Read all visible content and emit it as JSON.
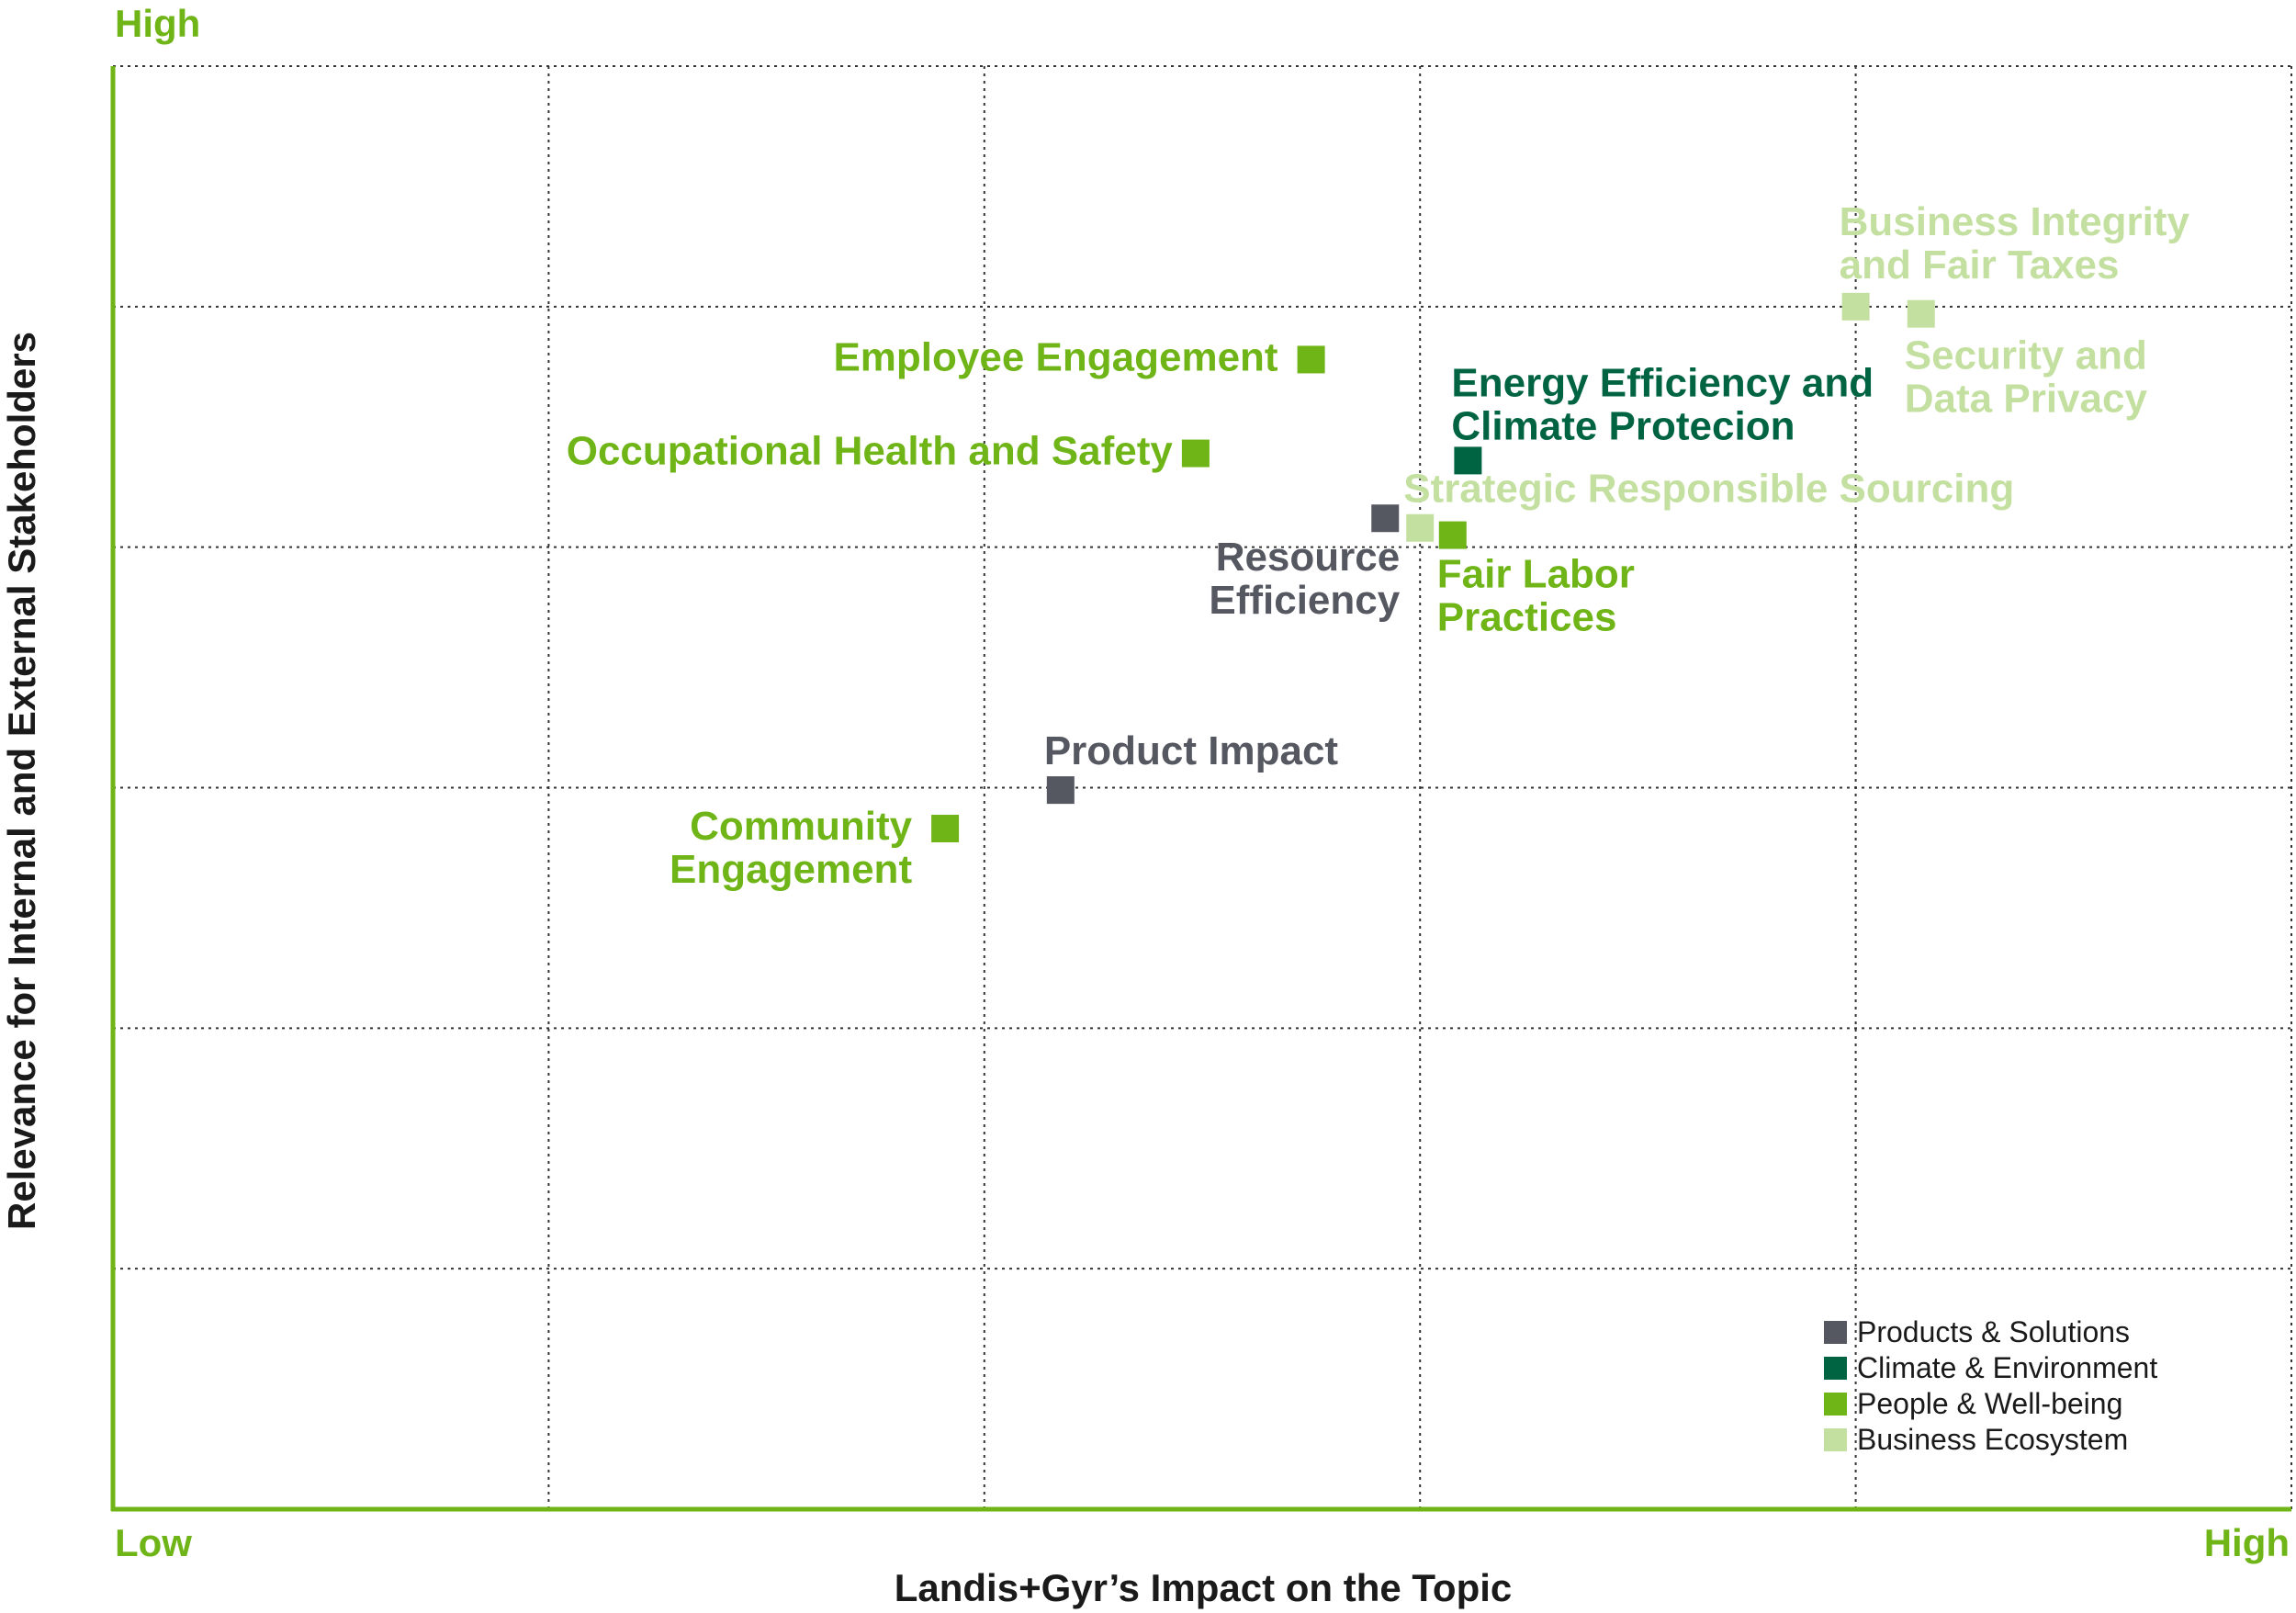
{
  "chart_data": {
    "type": "scatter",
    "title": "",
    "xlabel": "Landis+Gyr’s Impact on the Topic",
    "ylabel": "Relevance for Internal and External Stakeholders",
    "x_low_label": "Low",
    "x_high_label": "High",
    "y_high_label": "High",
    "xlim": [
      0,
      10
    ],
    "ylim": [
      0,
      6
    ],
    "grid": true,
    "legend_position": "bottom-right",
    "categories": [
      {
        "id": "products",
        "name": "Products & Solutions",
        "color": "#555761"
      },
      {
        "id": "climate",
        "name": "Climate & Environment",
        "color": "#006442"
      },
      {
        "id": "people",
        "name": "People & Well-being",
        "color": "#6fb517"
      },
      {
        "id": "business",
        "name": "Business Ecosystem",
        "color": "#c4e0a1"
      }
    ],
    "points": [
      {
        "label_lines": [
          "Business Integrity",
          "and Fair Taxes"
        ],
        "category": "business",
        "x": 8.0,
        "y": 5.0
      },
      {
        "label_lines": [
          "Security and",
          "Data Privacy"
        ],
        "category": "business",
        "x": 8.3,
        "y": 4.97
      },
      {
        "label_lines": [
          "Employee Engagement"
        ],
        "category": "people",
        "x": 5.5,
        "y": 4.78
      },
      {
        "label_lines": [
          "Energy Efficiency and",
          "Climate Protecion"
        ],
        "category": "climate",
        "x": 6.22,
        "y": 4.36
      },
      {
        "label_lines": [
          "Occupational Health and Safety"
        ],
        "category": "people",
        "x": 4.97,
        "y": 4.39
      },
      {
        "label_lines": [
          "Strategic Responsible Sourcing"
        ],
        "category": "business",
        "x": 6.0,
        "y": 4.08
      },
      {
        "label_lines": [
          "Resource",
          "Efficiency"
        ],
        "category": "products",
        "x": 5.84,
        "y": 4.12
      },
      {
        "label_lines": [
          "Fair Labor",
          "Practices"
        ],
        "category": "people",
        "x": 6.15,
        "y": 4.05
      },
      {
        "label_lines": [
          "Product Impact"
        ],
        "category": "products",
        "x": 4.35,
        "y": 2.99
      },
      {
        "label_lines": [
          "Community",
          "Engagement"
        ],
        "category": "people",
        "x": 3.82,
        "y": 2.83
      }
    ]
  }
}
